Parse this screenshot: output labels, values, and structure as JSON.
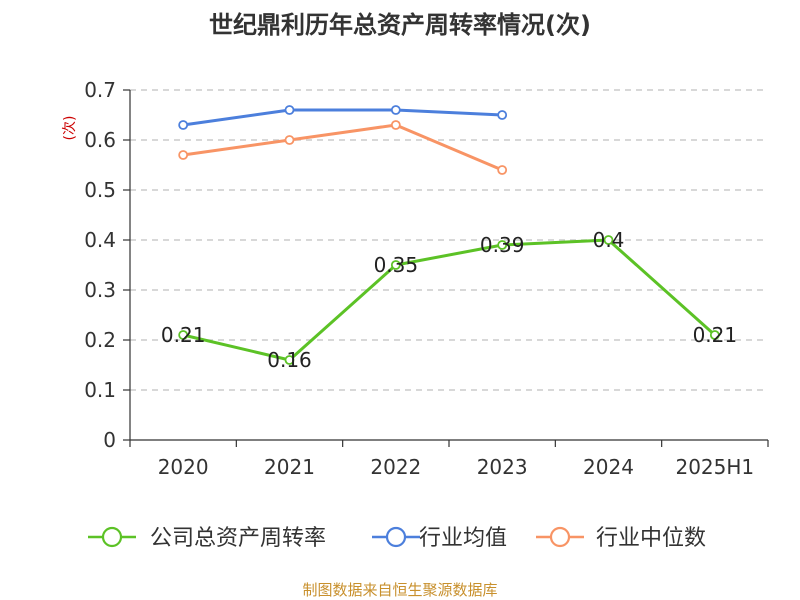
{
  "chart_data": {
    "type": "line",
    "title": "世纪鼎利历年总资产周转率情况(次)",
    "ylabel": "(次)",
    "categories": [
      "2020",
      "2021",
      "2022",
      "2023",
      "2024",
      "2025H1"
    ],
    "y_ticks": [
      "0",
      "0.1",
      "0.2",
      "0.3",
      "0.4",
      "0.5",
      "0.6",
      "0.7"
    ],
    "ylim": [
      0,
      0.7
    ],
    "grid": "horizontal dashed",
    "legend_position": "bottom",
    "series": [
      {
        "name": "公司总资产周转率",
        "color": "#5cc226",
        "values": [
          0.21,
          0.16,
          0.35,
          0.39,
          0.4,
          0.21
        ],
        "labels": [
          "0.21",
          "0.16",
          "0.35",
          "0.39",
          "0.4",
          "0.21"
        ]
      },
      {
        "name": "行业均值",
        "color": "#4c7fdc",
        "values": [
          0.63,
          0.66,
          0.66,
          0.65,
          null,
          null
        ]
      },
      {
        "name": "行业中位数",
        "color": "#f89465",
        "values": [
          0.57,
          0.6,
          0.63,
          0.54,
          null,
          null
        ]
      }
    ],
    "source": "制图数据来自恒生聚源数据库"
  }
}
